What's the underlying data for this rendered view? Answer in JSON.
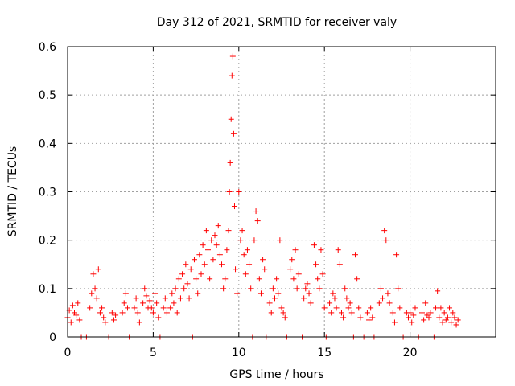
{
  "chart_data": {
    "type": "scatter",
    "title": "Day 312 of 2021, SRMTID for receiver valy",
    "xlabel": "GPS time / hours",
    "ylabel": "SRMTID / TECUs",
    "xlim": [
      0,
      25
    ],
    "ylim": [
      0,
      0.6
    ],
    "x_ticks": [
      0,
      5,
      10,
      15,
      20
    ],
    "y_ticks": [
      0,
      0.1,
      0.2,
      0.3,
      0.4,
      0.5,
      0.6
    ],
    "x_tick_labels": [
      "0",
      "5",
      "10",
      "15",
      "20"
    ],
    "y_tick_labels": [
      "0",
      "0.1",
      "0.2",
      "0.3",
      "0.4",
      "0.5",
      "0.6"
    ],
    "grid": true,
    "marker": "plus",
    "series": [
      {
        "name": "SRMTID",
        "color": "#ff0000",
        "points": [
          [
            0.0,
            0.04
          ],
          [
            0.1,
            0.055
          ],
          [
            0.2,
            0.03
          ],
          [
            0.3,
            0.065
          ],
          [
            0.4,
            0.05
          ],
          [
            0.5,
            0.045
          ],
          [
            0.6,
            0.07
          ],
          [
            0.7,
            0.035
          ],
          [
            0.8,
            0.0
          ],
          [
            1.1,
            0.0
          ],
          [
            1.3,
            0.06
          ],
          [
            1.4,
            0.09
          ],
          [
            1.5,
            0.13
          ],
          [
            1.6,
            0.1
          ],
          [
            1.7,
            0.08
          ],
          [
            1.8,
            0.14
          ],
          [
            1.9,
            0.05
          ],
          [
            2.0,
            0.06
          ],
          [
            2.1,
            0.04
          ],
          [
            2.2,
            0.03
          ],
          [
            2.4,
            0.0
          ],
          [
            2.6,
            0.05
          ],
          [
            2.7,
            0.035
          ],
          [
            2.8,
            0.045
          ],
          [
            3.2,
            0.05
          ],
          [
            3.3,
            0.07
          ],
          [
            3.4,
            0.09
          ],
          [
            3.5,
            0.06
          ],
          [
            3.6,
            0.0
          ],
          [
            3.9,
            0.06
          ],
          [
            4.0,
            0.08
          ],
          [
            4.1,
            0.05
          ],
          [
            4.2,
            0.03
          ],
          [
            4.4,
            0.07
          ],
          [
            4.5,
            0.1
          ],
          [
            4.6,
            0.085
          ],
          [
            4.7,
            0.06
          ],
          [
            4.8,
            0.075
          ],
          [
            4.9,
            0.06
          ],
          [
            5.0,
            0.05
          ],
          [
            5.1,
            0.09
          ],
          [
            5.2,
            0.07
          ],
          [
            5.3,
            0.04
          ],
          [
            5.4,
            0.0
          ],
          [
            5.6,
            0.06
          ],
          [
            5.7,
            0.08
          ],
          [
            5.8,
            0.05
          ],
          [
            6.0,
            0.06
          ],
          [
            6.1,
            0.09
          ],
          [
            6.2,
            0.07
          ],
          [
            6.3,
            0.1
          ],
          [
            6.4,
            0.05
          ],
          [
            6.5,
            0.12
          ],
          [
            6.6,
            0.08
          ],
          [
            6.7,
            0.13
          ],
          [
            6.8,
            0.1
          ],
          [
            6.9,
            0.15
          ],
          [
            7.0,
            0.11
          ],
          [
            7.1,
            0.08
          ],
          [
            7.2,
            0.14
          ],
          [
            7.3,
            0.0
          ],
          [
            7.4,
            0.16
          ],
          [
            7.5,
            0.12
          ],
          [
            7.6,
            0.09
          ],
          [
            7.7,
            0.17
          ],
          [
            7.8,
            0.13
          ],
          [
            7.9,
            0.19
          ],
          [
            8.0,
            0.15
          ],
          [
            8.1,
            0.22
          ],
          [
            8.2,
            0.18
          ],
          [
            8.3,
            0.12
          ],
          [
            8.4,
            0.2
          ],
          [
            8.5,
            0.16
          ],
          [
            8.6,
            0.21
          ],
          [
            8.7,
            0.19
          ],
          [
            8.8,
            0.23
          ],
          [
            8.9,
            0.17
          ],
          [
            9.0,
            0.15
          ],
          [
            9.1,
            0.1
          ],
          [
            9.2,
            0.12
          ],
          [
            9.3,
            0.18
          ],
          [
            9.4,
            0.22
          ],
          [
            9.45,
            0.3
          ],
          [
            9.5,
            0.36
          ],
          [
            9.55,
            0.45
          ],
          [
            9.6,
            0.54
          ],
          [
            9.65,
            0.58
          ],
          [
            9.7,
            0.42
          ],
          [
            9.75,
            0.27
          ],
          [
            9.8,
            0.14
          ],
          [
            9.9,
            0.09
          ],
          [
            10.0,
            0.3
          ],
          [
            10.1,
            0.2
          ],
          [
            10.2,
            0.22
          ],
          [
            10.3,
            0.17
          ],
          [
            10.4,
            0.13
          ],
          [
            10.5,
            0.18
          ],
          [
            10.6,
            0.15
          ],
          [
            10.7,
            0.1
          ],
          [
            10.8,
            0.0
          ],
          [
            10.9,
            0.2
          ],
          [
            11.0,
            0.26
          ],
          [
            11.1,
            0.24
          ],
          [
            11.2,
            0.12
          ],
          [
            11.3,
            0.09
          ],
          [
            11.4,
            0.16
          ],
          [
            11.5,
            0.14
          ],
          [
            11.6,
            0.0
          ],
          [
            11.8,
            0.07
          ],
          [
            11.9,
            0.05
          ],
          [
            12.0,
            0.1
          ],
          [
            12.1,
            0.08
          ],
          [
            12.2,
            0.12
          ],
          [
            12.3,
            0.09
          ],
          [
            12.4,
            0.2
          ],
          [
            12.5,
            0.06
          ],
          [
            12.6,
            0.05
          ],
          [
            12.7,
            0.04
          ],
          [
            12.8,
            0.0
          ],
          [
            13.0,
            0.14
          ],
          [
            13.1,
            0.16
          ],
          [
            13.2,
            0.12
          ],
          [
            13.3,
            0.18
          ],
          [
            13.4,
            0.1
          ],
          [
            13.5,
            0.13
          ],
          [
            13.7,
            0.0
          ],
          [
            13.8,
            0.08
          ],
          [
            13.9,
            0.1
          ],
          [
            14.0,
            0.11
          ],
          [
            14.1,
            0.09
          ],
          [
            14.2,
            0.07
          ],
          [
            14.4,
            0.19
          ],
          [
            14.5,
            0.15
          ],
          [
            14.6,
            0.12
          ],
          [
            14.7,
            0.1
          ],
          [
            14.8,
            0.18
          ],
          [
            14.9,
            0.13
          ],
          [
            15.0,
            0.06
          ],
          [
            15.1,
            0.0
          ],
          [
            15.3,
            0.07
          ],
          [
            15.4,
            0.05
          ],
          [
            15.5,
            0.09
          ],
          [
            15.6,
            0.08
          ],
          [
            15.7,
            0.06
          ],
          [
            15.8,
            0.18
          ],
          [
            15.9,
            0.15
          ],
          [
            16.0,
            0.05
          ],
          [
            16.1,
            0.04
          ],
          [
            16.2,
            0.1
          ],
          [
            16.3,
            0.08
          ],
          [
            16.4,
            0.06
          ],
          [
            16.5,
            0.07
          ],
          [
            16.6,
            0.05
          ],
          [
            16.7,
            0.0
          ],
          [
            16.8,
            0.17
          ],
          [
            16.9,
            0.12
          ],
          [
            17.0,
            0.06
          ],
          [
            17.1,
            0.04
          ],
          [
            17.3,
            0.0
          ],
          [
            17.5,
            0.05
          ],
          [
            17.6,
            0.035
          ],
          [
            17.7,
            0.06
          ],
          [
            17.8,
            0.04
          ],
          [
            17.9,
            0.0
          ],
          [
            18.2,
            0.07
          ],
          [
            18.3,
            0.1
          ],
          [
            18.4,
            0.08
          ],
          [
            18.5,
            0.22
          ],
          [
            18.6,
            0.2
          ],
          [
            18.7,
            0.09
          ],
          [
            18.8,
            0.07
          ],
          [
            19.0,
            0.05
          ],
          [
            19.1,
            0.03
          ],
          [
            19.2,
            0.17
          ],
          [
            19.3,
            0.1
          ],
          [
            19.4,
            0.06
          ],
          [
            19.6,
            0.0
          ],
          [
            19.8,
            0.05
          ],
          [
            19.9,
            0.04
          ],
          [
            20.0,
            0.05
          ],
          [
            20.1,
            0.03
          ],
          [
            20.2,
            0.045
          ],
          [
            20.3,
            0.06
          ],
          [
            20.5,
            0.0
          ],
          [
            20.7,
            0.05
          ],
          [
            20.8,
            0.035
          ],
          [
            20.9,
            0.07
          ],
          [
            21.0,
            0.045
          ],
          [
            21.1,
            0.04
          ],
          [
            21.2,
            0.05
          ],
          [
            21.4,
            0.0
          ],
          [
            21.5,
            0.06
          ],
          [
            21.6,
            0.095
          ],
          [
            21.7,
            0.04
          ],
          [
            21.8,
            0.06
          ],
          [
            21.9,
            0.03
          ],
          [
            22.0,
            0.05
          ],
          [
            22.1,
            0.035
          ],
          [
            22.2,
            0.04
          ],
          [
            22.3,
            0.06
          ],
          [
            22.4,
            0.03
          ],
          [
            22.5,
            0.05
          ],
          [
            22.6,
            0.04
          ],
          [
            22.7,
            0.025
          ],
          [
            22.8,
            0.035
          ]
        ]
      }
    ]
  }
}
